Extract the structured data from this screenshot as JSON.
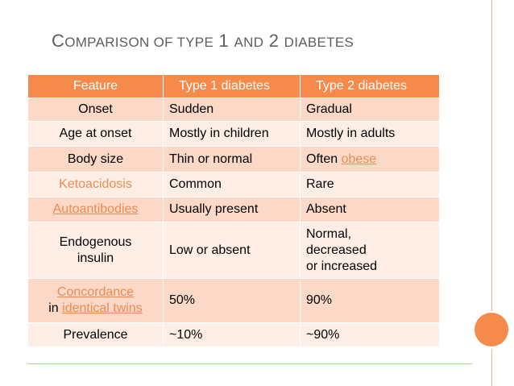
{
  "title": {
    "c1": "C",
    "w1": "omparison of type",
    "n1": "1",
    "w2": "and",
    "n2": "2",
    "w3": "diabetes"
  },
  "table": {
    "headers": [
      "Feature",
      "Type 1 diabetes",
      "Type 2 diabetes"
    ],
    "rows": {
      "onset": {
        "feature": "Onset",
        "t1": "Sudden",
        "t2": "Gradual"
      },
      "age": {
        "feature": "Age at onset",
        "t1": "Mostly in children",
        "t2": "Mostly in adults"
      },
      "body": {
        "feature": "Body size",
        "t1": "Thin or normal",
        "t2_pre": "Often ",
        "t2_link": "obese"
      },
      "keto": {
        "feature": "Ketoacidosis",
        "t1": "Common",
        "t2": "Rare"
      },
      "auto": {
        "feature": "Autoantibodies",
        "t1": "Usually present",
        "t2": "Absent"
      },
      "insulin": {
        "feature_l1": "Endogenous",
        "feature_l2": "insulin",
        "t1": "Low or absent",
        "t2_l1": "Normal,",
        "t2_l2": "decreased",
        "t2_l3": "or increased"
      },
      "concordance": {
        "feature_l1": "Concordance",
        "feature_pre": "in ",
        "feature_link": "identical twins",
        "t1": "50%",
        "t2": "90%"
      },
      "prevalence": {
        "feature": "Prevalence",
        "t1": "~10%",
        "t2": "~90%"
      }
    }
  },
  "colors": {
    "accent": "#f58a4b",
    "row_dark": "#fcd9c6",
    "row_light": "#feeee6"
  }
}
